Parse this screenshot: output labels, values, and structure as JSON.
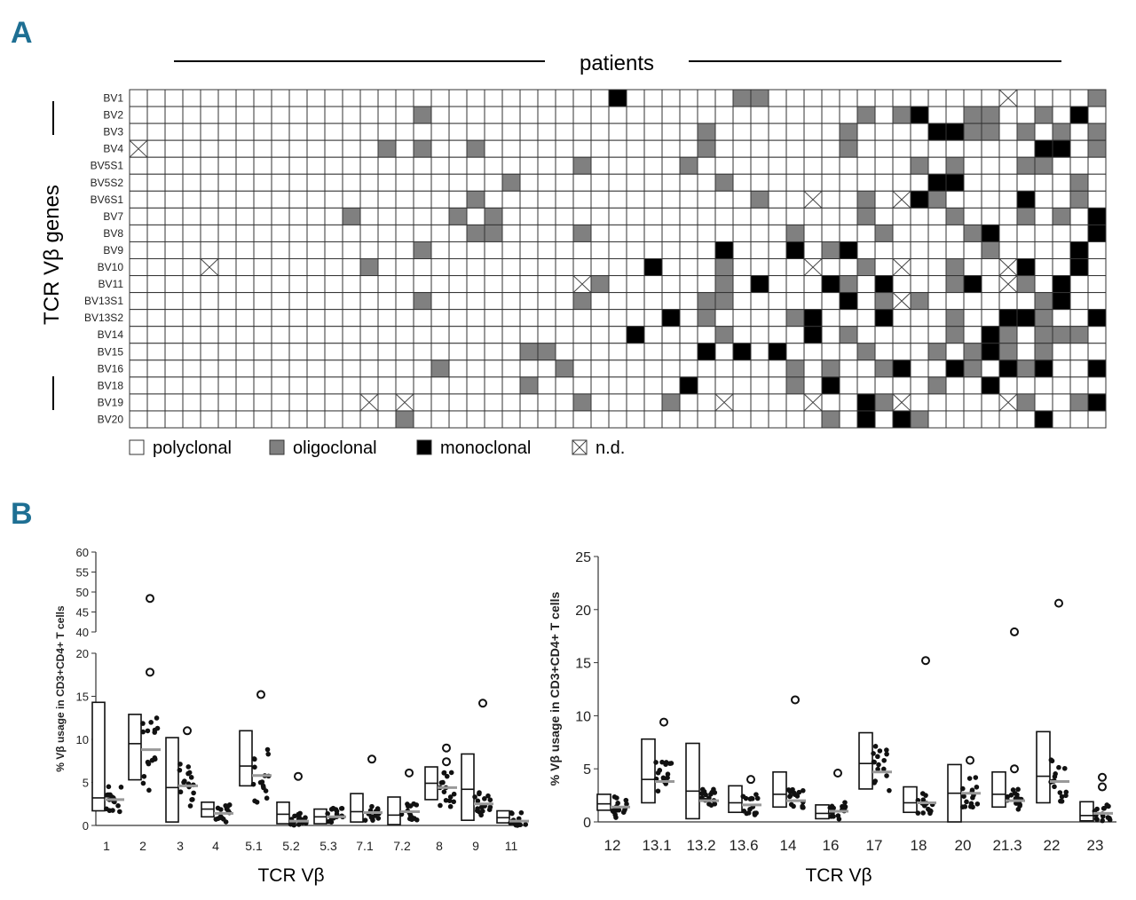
{
  "panels": {
    "a": "A",
    "b": "B"
  },
  "heatmap": {
    "column_header": "patients",
    "row_axis_label": "TCR Vβ genes",
    "genes": [
      "BV1",
      "BV2",
      "BV3",
      "BV4",
      "BV5S1",
      "BV5S2",
      "BV6S1",
      "BV7",
      "BV8",
      "BV9",
      "BV10",
      "BV11",
      "BV13S1",
      "BV13S2",
      "BV14",
      "BV15",
      "BV16",
      "BV18",
      "BV19",
      "BV20"
    ],
    "n_patients": 55,
    "colors": {
      "polyclonal": "#ffffff",
      "oligoclonal": "#808080",
      "monoclonal": "#000000",
      "nd": "#ffffff",
      "grid": "#333333"
    },
    "legend": [
      {
        "key": "polyclonal",
        "label": "polyclonal"
      },
      {
        "key": "oligoclonal",
        "label": "oligoclonal"
      },
      {
        "key": "monoclonal",
        "label": "monoclonal"
      },
      {
        "key": "nd",
        "label": "n.d."
      }
    ],
    "cells": {
      "oligoclonal": [
        [
          0,
          34
        ],
        [
          0,
          35
        ],
        [
          0,
          54
        ],
        [
          1,
          16
        ],
        [
          1,
          41
        ],
        [
          1,
          43
        ],
        [
          1,
          47
        ],
        [
          1,
          48
        ],
        [
          1,
          51
        ],
        [
          2,
          32
        ],
        [
          2,
          40
        ],
        [
          2,
          47
        ],
        [
          2,
          48
        ],
        [
          2,
          50
        ],
        [
          2,
          52
        ],
        [
          2,
          54
        ],
        [
          3,
          14
        ],
        [
          3,
          16
        ],
        [
          3,
          19
        ],
        [
          3,
          32
        ],
        [
          3,
          40
        ],
        [
          3,
          51
        ],
        [
          3,
          54
        ],
        [
          4,
          25
        ],
        [
          4,
          31
        ],
        [
          4,
          44
        ],
        [
          4,
          46
        ],
        [
          4,
          50
        ],
        [
          4,
          51
        ],
        [
          5,
          21
        ],
        [
          5,
          33
        ],
        [
          5,
          53
        ],
        [
          6,
          19
        ],
        [
          6,
          35
        ],
        [
          6,
          41
        ],
        [
          6,
          45
        ],
        [
          6,
          53
        ],
        [
          7,
          12
        ],
        [
          7,
          18
        ],
        [
          7,
          20
        ],
        [
          7,
          41
        ],
        [
          7,
          46
        ],
        [
          7,
          50
        ],
        [
          7,
          52
        ],
        [
          8,
          19
        ],
        [
          8,
          20
        ],
        [
          8,
          25
        ],
        [
          8,
          37
        ],
        [
          8,
          42
        ],
        [
          8,
          47
        ],
        [
          9,
          16
        ],
        [
          9,
          39
        ],
        [
          9,
          48
        ],
        [
          10,
          13
        ],
        [
          10,
          33
        ],
        [
          10,
          41
        ],
        [
          10,
          46
        ],
        [
          11,
          26
        ],
        [
          11,
          33
        ],
        [
          11,
          40
        ],
        [
          11,
          46
        ],
        [
          11,
          49
        ],
        [
          11,
          50
        ],
        [
          12,
          16
        ],
        [
          12,
          25
        ],
        [
          12,
          32
        ],
        [
          12,
          33
        ],
        [
          12,
          42
        ],
        [
          12,
          44
        ],
        [
          12,
          51
        ],
        [
          13,
          32
        ],
        [
          13,
          37
        ],
        [
          13,
          46
        ],
        [
          13,
          51
        ],
        [
          14,
          33
        ],
        [
          14,
          38
        ],
        [
          14,
          40
        ],
        [
          14,
          46
        ],
        [
          14,
          49
        ],
        [
          14,
          51
        ],
        [
          14,
          52
        ],
        [
          14,
          53
        ],
        [
          15,
          22
        ],
        [
          15,
          23
        ],
        [
          15,
          41
        ],
        [
          15,
          45
        ],
        [
          15,
          47
        ],
        [
          15,
          49
        ],
        [
          15,
          51
        ],
        [
          16,
          17
        ],
        [
          16,
          24
        ],
        [
          16,
          37
        ],
        [
          16,
          39
        ],
        [
          16,
          42
        ],
        [
          16,
          47
        ],
        [
          16,
          50
        ],
        [
          17,
          22
        ],
        [
          17,
          37
        ],
        [
          17,
          45
        ],
        [
          18,
          25
        ],
        [
          18,
          30
        ],
        [
          18,
          42
        ],
        [
          18,
          50
        ],
        [
          18,
          53
        ],
        [
          19,
          15
        ],
        [
          19,
          39
        ],
        [
          19,
          44
        ]
      ],
      "monoclonal": [
        [
          0,
          27
        ],
        [
          1,
          44
        ],
        [
          1,
          53
        ],
        [
          2,
          45
        ],
        [
          2,
          46
        ],
        [
          3,
          51
        ],
        [
          3,
          52
        ],
        [
          5,
          45
        ],
        [
          5,
          46
        ],
        [
          6,
          44
        ],
        [
          6,
          50
        ],
        [
          7,
          54
        ],
        [
          8,
          48
        ],
        [
          8,
          54
        ],
        [
          9,
          33
        ],
        [
          9,
          37
        ],
        [
          9,
          40
        ],
        [
          9,
          53
        ],
        [
          10,
          29
        ],
        [
          10,
          50
        ],
        [
          10,
          53
        ],
        [
          11,
          35
        ],
        [
          11,
          39
        ],
        [
          11,
          42
        ],
        [
          11,
          47
        ],
        [
          11,
          52
        ],
        [
          12,
          40
        ],
        [
          12,
          52
        ],
        [
          13,
          30
        ],
        [
          13,
          38
        ],
        [
          13,
          42
        ],
        [
          13,
          49
        ],
        [
          13,
          50
        ],
        [
          13,
          54
        ],
        [
          14,
          28
        ],
        [
          14,
          38
        ],
        [
          14,
          48
        ],
        [
          15,
          32
        ],
        [
          15,
          34
        ],
        [
          15,
          36
        ],
        [
          15,
          48
        ],
        [
          16,
          43
        ],
        [
          16,
          46
        ],
        [
          16,
          49
        ],
        [
          16,
          51
        ],
        [
          16,
          54
        ],
        [
          17,
          31
        ],
        [
          17,
          39
        ],
        [
          17,
          48
        ],
        [
          18,
          41
        ],
        [
          18,
          54
        ],
        [
          19,
          41
        ],
        [
          19,
          43
        ],
        [
          19,
          51
        ]
      ],
      "nd": [
        [
          0,
          49
        ],
        [
          3,
          0
        ],
        [
          6,
          38
        ],
        [
          6,
          43
        ],
        [
          10,
          4
        ],
        [
          10,
          38
        ],
        [
          10,
          43
        ],
        [
          10,
          49
        ],
        [
          11,
          25
        ],
        [
          11,
          49
        ],
        [
          12,
          43
        ],
        [
          18,
          13
        ],
        [
          18,
          15
        ],
        [
          18,
          33
        ],
        [
          18,
          38
        ],
        [
          18,
          43
        ],
        [
          18,
          49
        ]
      ]
    }
  },
  "chart_data": [
    {
      "type": "box",
      "xlabel": "TCR Vβ",
      "ylabel": "% Vβ usage in CD3+CD4+ T cells",
      "ylim": [
        0,
        60
      ],
      "y_axis_break": [
        20,
        40
      ],
      "yticks_lower": [
        "0",
        "5",
        "10",
        "15",
        "20"
      ],
      "yticks_upper": [
        "40",
        "45",
        "50",
        "55",
        "60"
      ],
      "categories": [
        "1",
        "2",
        "3",
        "4",
        "5.1",
        "5.2",
        "5.3",
        "7.1",
        "7.2",
        "8",
        "9",
        "11"
      ],
      "normal_box": [
        [
          1.7,
          3.2,
          14.3
        ],
        [
          5.3,
          9.5,
          12.9
        ],
        [
          0.4,
          4.4,
          10.2
        ],
        [
          1.0,
          1.9,
          2.7
        ],
        [
          4.6,
          6.9,
          11.0
        ],
        [
          0.2,
          1.3,
          2.7
        ],
        [
          0.2,
          1.0,
          1.9
        ],
        [
          0.4,
          1.6,
          3.7
        ],
        [
          0.1,
          1.2,
          3.3
        ],
        [
          3.0,
          4.9,
          6.8
        ],
        [
          0.6,
          4.2,
          8.3
        ],
        [
          0.3,
          0.9,
          1.7
        ]
      ],
      "patient_median": [
        3.0,
        8.8,
        4.6,
        1.4,
        5.8,
        0.5,
        1.0,
        1.5,
        1.6,
        4.4,
        2.5,
        0.5
      ],
      "outliers": [
        [],
        [
          48.4,
          17.8
        ],
        [
          11.0
        ],
        [],
        [
          15.2
        ],
        [
          5.7
        ],
        [],
        [
          7.7
        ],
        [
          6.1
        ],
        [
          9.0,
          7.4
        ],
        [
          14.2
        ],
        []
      ]
    },
    {
      "type": "box",
      "xlabel": "TCR Vβ",
      "ylabel": "% Vβ usage in CD3+CD4+ T cells",
      "ylim": [
        0,
        25
      ],
      "yticks": [
        "0",
        "5",
        "10",
        "15",
        "20",
        "25"
      ],
      "categories": [
        "12",
        "13.1",
        "13.2",
        "13.6",
        "14",
        "16",
        "17",
        "18",
        "20",
        "21.3",
        "22",
        "23"
      ],
      "normal_box": [
        [
          1.1,
          1.7,
          2.6
        ],
        [
          1.8,
          4.0,
          7.8
        ],
        [
          0.3,
          2.9,
          7.4
        ],
        [
          0.9,
          1.8,
          3.4
        ],
        [
          1.4,
          2.6,
          4.7
        ],
        [
          0.3,
          0.8,
          1.6
        ],
        [
          3.1,
          5.5,
          8.4
        ],
        [
          0.9,
          1.8,
          3.3
        ],
        [
          0.0,
          2.7,
          5.4
        ],
        [
          1.4,
          2.6,
          4.7
        ],
        [
          1.8,
          4.3,
          8.5
        ],
        [
          0.1,
          0.6,
          1.9
        ]
      ],
      "patient_median": [
        1.4,
        3.8,
        2.0,
        1.6,
        2.0,
        1.0,
        4.7,
        1.8,
        2.7,
        2.0,
        3.8,
        0.8
      ],
      "outliers": [
        [],
        [
          9.4
        ],
        [],
        [
          4.0
        ],
        [
          11.5
        ],
        [
          4.6
        ],
        [],
        [
          15.2
        ],
        [
          5.8
        ],
        [
          17.9,
          5.0
        ],
        [
          20.6
        ],
        [
          4.2,
          3.3
        ]
      ]
    }
  ]
}
